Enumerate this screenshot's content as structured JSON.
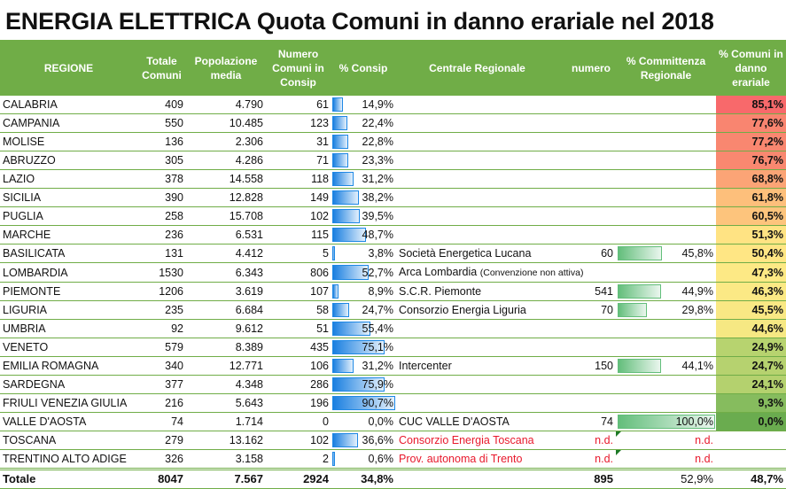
{
  "title": "ENERGIA ELETTRICA Quota Comuni in danno erariale nel 2018",
  "headers": {
    "regione": "REGIONE",
    "totale_comuni": "Totale Comuni",
    "popolazione_media": "Popolazione media",
    "numero_consip": "Numero Comuni in Consip",
    "perc_consip": "% Consip",
    "centrale": "Centrale Regionale",
    "numero": "numero",
    "perc_committenza": "%  Committenza Regionale",
    "perc_danno": "% Comuni in danno erariale"
  },
  "colors": {
    "header_bg": "#70ad47",
    "row_border": "#70ad47",
    "consip_bar": "#1a7fe0",
    "committenza_bar": "#63be7b",
    "nd_text": "#e8192c"
  },
  "rows": [
    {
      "regione": "CALABRIA",
      "totale": "409",
      "pop": "4.790",
      "num_consip": "61",
      "perc_consip": "14,9%",
      "consip_pct": 14.9,
      "centrale": "",
      "numero": "",
      "perc_comm": "",
      "comm_pct": null,
      "danno": "85,1%",
      "danno_color": "#f8696b"
    },
    {
      "regione": "CAMPANIA",
      "totale": "550",
      "pop": "10.485",
      "num_consip": "123",
      "perc_consip": "22,4%",
      "consip_pct": 22.4,
      "centrale": "",
      "numero": "",
      "perc_comm": "",
      "comm_pct": null,
      "danno": "77,6%",
      "danno_color": "#f98570"
    },
    {
      "regione": "MOLISE",
      "totale": "136",
      "pop": "2.306",
      "num_consip": "31",
      "perc_consip": "22,8%",
      "consip_pct": 22.8,
      "centrale": "",
      "numero": "",
      "perc_comm": "",
      "comm_pct": null,
      "danno": "77,2%",
      "danno_color": "#f98770"
    },
    {
      "regione": "ABRUZZO",
      "totale": "305",
      "pop": "4.286",
      "num_consip": "71",
      "perc_consip": "23,3%",
      "consip_pct": 23.3,
      "centrale": "",
      "numero": "",
      "perc_comm": "",
      "comm_pct": null,
      "danno": "76,7%",
      "danno_color": "#f98870"
    },
    {
      "regione": "LAZIO",
      "totale": "378",
      "pop": "14.558",
      "num_consip": "118",
      "perc_consip": "31,2%",
      "consip_pct": 31.2,
      "centrale": "",
      "numero": "",
      "perc_comm": "",
      "comm_pct": null,
      "danno": "68,8%",
      "danno_color": "#fba476"
    },
    {
      "regione": "SICILIA",
      "totale": "390",
      "pop": "12.828",
      "num_consip": "149",
      "perc_consip": "38,2%",
      "consip_pct": 38.2,
      "centrale": "",
      "numero": "",
      "perc_comm": "",
      "comm_pct": null,
      "danno": "61,8%",
      "danno_color": "#fdbf7b"
    },
    {
      "regione": "PUGLIA",
      "totale": "258",
      "pop": "15.708",
      "num_consip": "102",
      "perc_consip": "39,5%",
      "consip_pct": 39.5,
      "centrale": "",
      "numero": "",
      "perc_comm": "",
      "comm_pct": null,
      "danno": "60,5%",
      "danno_color": "#fdc47c"
    },
    {
      "regione": "MARCHE",
      "totale": "236",
      "pop": "6.531",
      "num_consip": "115",
      "perc_consip": "48,7%",
      "consip_pct": 48.7,
      "centrale": "",
      "numero": "",
      "perc_comm": "",
      "comm_pct": null,
      "danno": "51,3%",
      "danno_color": "#ffe383"
    },
    {
      "regione": "BASILICATA",
      "totale": "131",
      "pop": "4.412",
      "num_consip": "5",
      "perc_consip": "3,8%",
      "consip_pct": 3.8,
      "centrale": "Società Energetica Lucana",
      "numero": "60",
      "perc_comm": "45,8%",
      "comm_pct": 45.8,
      "danno": "50,4%",
      "danno_color": "#ffe684"
    },
    {
      "regione": "LOMBARDIA",
      "totale": "1530",
      "pop": "6.343",
      "num_consip": "806",
      "perc_consip": "52,7%",
      "consip_pct": 52.7,
      "centrale": "Arca Lombardia",
      "centrale_note": "(Convenzione non attiva)",
      "numero": "",
      "perc_comm": "",
      "comm_pct": null,
      "danno": "47,3%",
      "danno_color": "#fde985"
    },
    {
      "regione": "PIEMONTE",
      "totale": "1206",
      "pop": "3.619",
      "num_consip": "107",
      "perc_consip": "8,9%",
      "consip_pct": 8.9,
      "centrale": "S.C.R. Piemonte",
      "numero": "541",
      "perc_comm": "44,9%",
      "comm_pct": 44.9,
      "danno": "46,3%",
      "danno_color": "#fbe985"
    },
    {
      "regione": "LIGURIA",
      "totale": "235",
      "pop": "6.684",
      "num_consip": "58",
      "perc_consip": "24,7%",
      "consip_pct": 24.7,
      "centrale": "Consorzio Energia Liguria",
      "numero": "70",
      "perc_comm": "29,8%",
      "comm_pct": 29.8,
      "danno": "45,5%",
      "danno_color": "#f9e884"
    },
    {
      "regione": "UMBRIA",
      "totale": "92",
      "pop": "9.612",
      "num_consip": "51",
      "perc_consip": "55,4%",
      "consip_pct": 55.4,
      "centrale": "",
      "numero": "",
      "perc_comm": "",
      "comm_pct": null,
      "danno": "44,6%",
      "danno_color": "#f6e883"
    },
    {
      "regione": "VENETO",
      "totale": "579",
      "pop": "8.389",
      "num_consip": "435",
      "perc_consip": "75,1%",
      "consip_pct": 75.1,
      "centrale": "",
      "numero": "",
      "perc_comm": "",
      "comm_pct": null,
      "danno": "24,9%",
      "danno_color": "#b7d36f"
    },
    {
      "regione": "EMILIA ROMAGNA",
      "totale": "340",
      "pop": "12.771",
      "num_consip": "106",
      "perc_consip": "31,2%",
      "consip_pct": 31.2,
      "centrale": "Intercenter",
      "numero": "150",
      "perc_comm": "44,1%",
      "comm_pct": 44.1,
      "danno": "24,7%",
      "danno_color": "#b6d26f"
    },
    {
      "regione": "SARDEGNA",
      "totale": "377",
      "pop": "4.348",
      "num_consip": "286",
      "perc_consip": "75,9%",
      "consip_pct": 75.9,
      "centrale": "",
      "numero": "",
      "perc_comm": "",
      "comm_pct": null,
      "danno": "24,1%",
      "danno_color": "#b4d16e"
    },
    {
      "regione": "FRIULI VENEZIA GIULIA",
      "totale": "216",
      "pop": "5.643",
      "num_consip": "196",
      "perc_consip": "90,7%",
      "consip_pct": 90.7,
      "centrale": "",
      "numero": "",
      "perc_comm": "",
      "comm_pct": null,
      "danno": "9,3%",
      "danno_color": "#86bc5e"
    },
    {
      "regione": "VALLE D'AOSTA",
      "totale": "74",
      "pop": "1.714",
      "num_consip": "0",
      "perc_consip": "0,0%",
      "consip_pct": 0,
      "centrale": "CUC VALLE D'AOSTA",
      "numero": "74",
      "perc_comm": "100,0%",
      "comm_pct": 100,
      "danno": "0,0%",
      "danno_color": "#6aac4f"
    },
    {
      "regione": "TOSCANA",
      "totale": "279",
      "pop": "13.162",
      "num_consip": "102",
      "perc_consip": "36,6%",
      "consip_pct": 36.6,
      "centrale": "Consorzio Energia Toscana",
      "centrale_red": true,
      "numero": "n.d.",
      "perc_comm": "n.d.",
      "comm_pct": null,
      "nd": true,
      "danno": "",
      "danno_color": ""
    },
    {
      "regione": "TRENTINO ALTO ADIGE",
      "totale": "326",
      "pop": "3.158",
      "num_consip": "2",
      "perc_consip": "0,6%",
      "consip_pct": 0.6,
      "centrale": "Prov. autonoma di Trento",
      "centrale_red": true,
      "numero": "n.d.",
      "perc_comm": "n.d.",
      "comm_pct": null,
      "nd": true,
      "danno": "",
      "danno_color": ""
    }
  ],
  "total": {
    "regione": "Totale",
    "totale": "8047",
    "pop": "7.567",
    "num_consip": "2924",
    "perc_consip": "34,8%",
    "centrale": "",
    "numero": "895",
    "perc_comm": "52,9%",
    "danno": "48,7%"
  }
}
